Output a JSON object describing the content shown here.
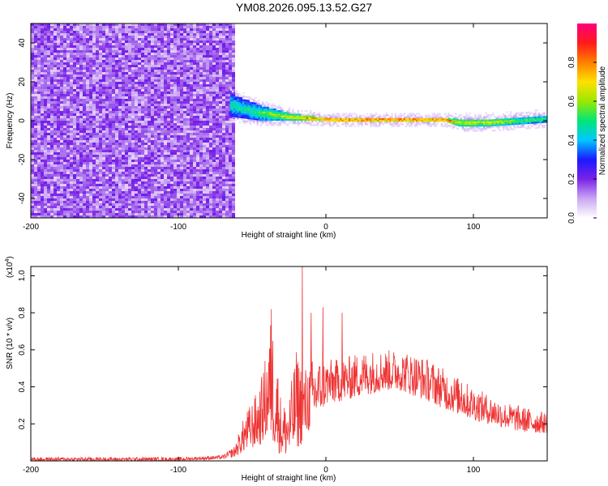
{
  "figure": {
    "title": "YM08.2026.095.13.52.G27"
  },
  "chart_data": [
    {
      "type": "heatmap",
      "title": "YM08.2026.095.13.52.G27",
      "xlabel": "Height of straight line (km)",
      "ylabel": "Frequency (Hz)",
      "xlim": [
        -200,
        150
      ],
      "ylim": [
        -50,
        50
      ],
      "xticks": [
        -200,
        -100,
        0,
        100
      ],
      "xtick_labels": [
        "-200",
        "-100",
        "0",
        "100"
      ],
      "yticks": [
        -40,
        -20,
        0,
        20,
        40
      ],
      "ytick_labels": [
        "-40",
        "-20",
        "0",
        "20",
        "40"
      ],
      "grid": false,
      "colorbar": {
        "label": "Normalized spectral amplitude",
        "range": [
          0,
          1
        ],
        "ticks": [
          0.0,
          0.2,
          0.4,
          0.6,
          0.8
        ],
        "tick_labels": [
          "0.0",
          "0.2",
          "0.4",
          "0.6",
          "0.8"
        ],
        "colormap": [
          "#ffffff",
          "#c9a6f3",
          "#7b22e6",
          "#1a1aff",
          "#00c8ff",
          "#00e676",
          "#9be800",
          "#ffe000",
          "#ff7f00",
          "#ff1a1a",
          "#ff007f"
        ]
      },
      "noise_region": {
        "x_range": [
          -200,
          -62
        ],
        "amplitude": 0.2
      },
      "ridge": [
        {
          "x": -65,
          "freq": 8,
          "spread": 6,
          "amplitude": 0.5
        },
        {
          "x": -55,
          "freq": 6,
          "spread": 5,
          "amplitude": 0.5
        },
        {
          "x": -45,
          "freq": 4,
          "spread": 4,
          "amplitude": 0.55
        },
        {
          "x": -35,
          "freq": 3,
          "spread": 3,
          "amplitude": 0.65
        },
        {
          "x": -25,
          "freq": 2,
          "spread": 2,
          "amplitude": 0.7
        },
        {
          "x": -15,
          "freq": 1.5,
          "spread": 1.5,
          "amplitude": 0.8
        },
        {
          "x": -5,
          "freq": 1,
          "spread": 1,
          "amplitude": 0.85
        },
        {
          "x": 5,
          "freq": 0.5,
          "spread": 1,
          "amplitude": 0.95
        },
        {
          "x": 30,
          "freq": 0.5,
          "spread": 1,
          "amplitude": 0.95
        },
        {
          "x": 60,
          "freq": 0.5,
          "spread": 1,
          "amplitude": 0.95
        },
        {
          "x": 80,
          "freq": 0.5,
          "spread": 1,
          "amplitude": 0.9
        },
        {
          "x": 90,
          "freq": -1,
          "spread": 2,
          "amplitude": 0.7
        },
        {
          "x": 110,
          "freq": -1,
          "spread": 2,
          "amplitude": 0.7
        },
        {
          "x": 130,
          "freq": 0,
          "spread": 2,
          "amplitude": 0.6
        },
        {
          "x": 150,
          "freq": 1,
          "spread": 2,
          "amplitude": 0.55
        }
      ]
    },
    {
      "type": "line",
      "xlabel": "Height of straight line (km)",
      "ylabel": "SNR (10 * v/v)",
      "y_multiplier": "(x10",
      "y_multiplier_exp": "4",
      "y_multiplier_close": ")",
      "xlim": [
        -200,
        150
      ],
      "ylim": [
        0,
        1.05
      ],
      "xticks": [
        -200,
        -100,
        0,
        100
      ],
      "xtick_labels": [
        "-200",
        "-100",
        "0",
        "100"
      ],
      "yticks": [
        0.2,
        0.4,
        0.6,
        0.8,
        1.0
      ],
      "ytick_labels": [
        "0.2",
        "0.4",
        "0.6",
        "0.8",
        "1.0"
      ],
      "grid": false,
      "color": "#ee3333",
      "envelope": {
        "x": [
          -200,
          -150,
          -100,
          -70,
          -62,
          -55,
          -45,
          -40,
          -37,
          -33,
          -30,
          -25,
          -20,
          -15,
          -10,
          -5,
          0,
          10,
          20,
          30,
          40,
          50,
          60,
          70,
          80,
          90,
          100,
          110,
          120,
          130,
          140,
          150
        ],
        "low": [
          0.0,
          0.0,
          0.0,
          0.01,
          0.02,
          0.05,
          0.08,
          0.12,
          0.1,
          0.05,
          0.03,
          0.02,
          0.06,
          0.1,
          0.18,
          0.25,
          0.3,
          0.32,
          0.34,
          0.36,
          0.38,
          0.38,
          0.35,
          0.32,
          0.28,
          0.25,
          0.22,
          0.2,
          0.18,
          0.16,
          0.15,
          0.15
        ],
        "high": [
          0.02,
          0.02,
          0.02,
          0.03,
          0.08,
          0.25,
          0.4,
          0.6,
          0.8,
          0.55,
          0.3,
          0.35,
          0.6,
          0.5,
          0.55,
          0.55,
          0.55,
          0.55,
          0.58,
          0.6,
          0.6,
          0.6,
          0.58,
          0.55,
          0.5,
          0.45,
          0.4,
          0.36,
          0.32,
          0.3,
          0.28,
          0.26
        ]
      },
      "spikes": [
        {
          "x": -37,
          "y": 0.82
        },
        {
          "x": -16,
          "y": 1.05
        },
        {
          "x": -10,
          "y": 0.8
        },
        {
          "x": -2,
          "y": 0.83
        },
        {
          "x": 11,
          "y": 0.8
        },
        {
          "x": 92,
          "y": 0.42
        }
      ]
    }
  ]
}
